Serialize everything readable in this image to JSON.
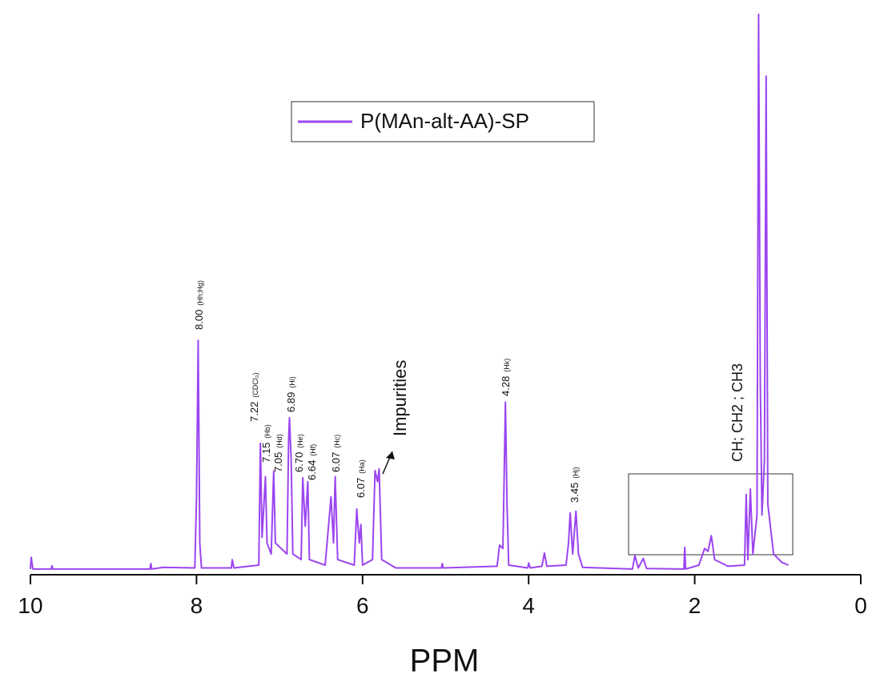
{
  "chart_data": {
    "type": "line",
    "x_label": "PPM",
    "xlim": [
      10,
      0
    ],
    "xticks": [
      10,
      8,
      6,
      4,
      2,
      0
    ],
    "ylim": [
      0,
      100
    ],
    "legend": "top-left",
    "series": [
      {
        "name": "P(MAn-alt-AA)-SP",
        "color": "#9b45f0",
        "x": [
          10.0,
          9.99,
          9.97,
          9.75,
          9.74,
          9.73,
          8.56,
          8.55,
          8.54,
          8.4,
          8.02,
          8.0,
          7.98,
          7.96,
          7.94,
          7.58,
          7.57,
          7.55,
          7.25,
          7.23,
          7.21,
          7.17,
          7.15,
          7.1,
          7.07,
          7.05,
          6.91,
          6.89,
          6.88,
          6.86,
          6.84,
          6.74,
          6.72,
          6.69,
          6.66,
          6.64,
          6.45,
          6.38,
          6.35,
          6.33,
          6.3,
          6.1,
          6.07,
          6.04,
          6.02,
          6.0,
          5.88,
          5.85,
          5.82,
          5.8,
          5.77,
          5.6,
          5.05,
          5.04,
          5.03,
          4.38,
          4.35,
          4.31,
          4.28,
          4.26,
          4.24,
          4.01,
          4.0,
          3.98,
          3.84,
          3.81,
          3.78,
          3.55,
          3.52,
          3.5,
          3.47,
          3.43,
          3.4,
          3.35,
          2.75,
          2.72,
          2.68,
          2.62,
          2.58,
          2.13,
          2.12,
          2.11,
          1.95,
          1.88,
          1.84,
          1.8,
          1.76,
          1.6,
          1.4,
          1.38,
          1.36,
          1.33,
          1.3,
          1.25,
          1.23,
          1.21,
          1.19,
          1.16,
          1.14,
          1.12,
          1.05,
          0.95,
          0.87
        ],
        "values": [
          0.3,
          2.4,
          0.3,
          0.3,
          0.9,
          0.3,
          0.3,
          1.3,
          0.3,
          0.6,
          0.5,
          13,
          41.4,
          5,
          0.5,
          0.5,
          2,
          0.5,
          1,
          22.9,
          6,
          16.9,
          5,
          3,
          17.9,
          5,
          3,
          24,
          27.5,
          20,
          3,
          2,
          16.7,
          8,
          16.0,
          2,
          1,
          13.3,
          5,
          16.9,
          2,
          1,
          11.1,
          5,
          8.3,
          1,
          2,
          18,
          16,
          18.3,
          2,
          0.5,
          0.5,
          1.3,
          0.5,
          0.8,
          4.6,
          4,
          30.3,
          12,
          1,
          0.5,
          1.4,
          0.5,
          0.8,
          3.2,
          0.8,
          1,
          5,
          10.4,
          3,
          10.7,
          3,
          0.6,
          0.3,
          2.7,
          0.5,
          2.2,
          0.4,
          0.3,
          4.2,
          0.3,
          1,
          4,
          3.5,
          6.3,
          2,
          0.8,
          1,
          13.7,
          2,
          14.7,
          3,
          10,
          100,
          34,
          10,
          20,
          88.9,
          12,
          3,
          1.5,
          1
        ]
      }
    ],
    "annotations": [
      {
        "shift": "8.00",
        "proton": "(Hh;Hg)"
      },
      {
        "shift": "7.22",
        "proton": "(CDCl₃)"
      },
      {
        "shift": "7.15",
        "proton": "(Hb)"
      },
      {
        "shift": "7.05",
        "proton": "(Hd)"
      },
      {
        "shift": "6.89",
        "proton": "(Hi)"
      },
      {
        "shift": "6.70",
        "proton": "(He)"
      },
      {
        "shift": "6.64",
        "proton": "(Hf)"
      },
      {
        "shift": "6.07",
        "proton": "(Hc)"
      },
      {
        "shift": "6.07",
        "proton": "(Ha)"
      },
      {
        "shift": "4.28",
        "proton": "(Hk)"
      },
      {
        "shift": "3.45",
        "proton": "(Hj)"
      }
    ],
    "impurities_label": "Impurities",
    "region_label": "CH; CH2 ; CH3"
  }
}
